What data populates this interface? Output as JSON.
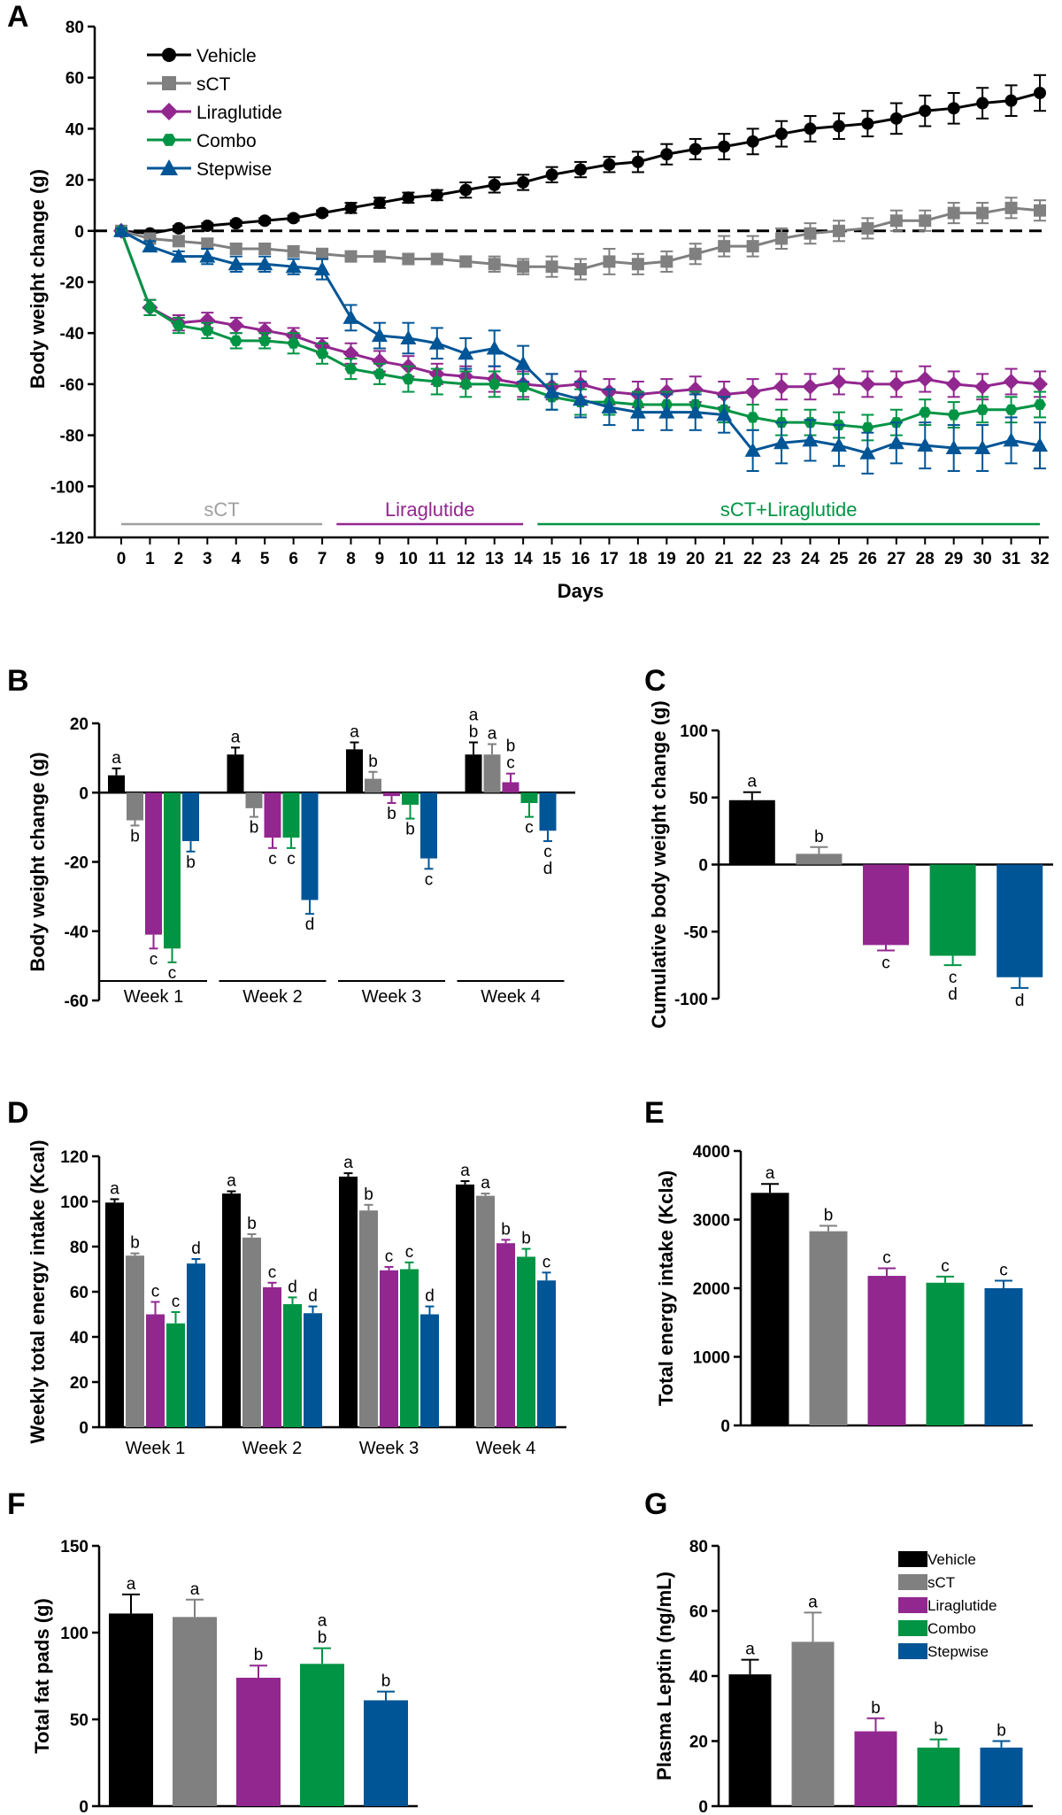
{
  "colors": {
    "Vehicle": "#000000",
    "sCT": "#808080",
    "Liraglutide": "#92278f",
    "Combo": "#009444",
    "Stepwise": "#005596"
  },
  "chart_data": [
    {
      "panel": "A",
      "type": "line",
      "ylabel": "Body weight change (g)",
      "xlabel": "Days",
      "xlim": [
        0,
        32
      ],
      "ylim": [
        -120,
        80
      ],
      "yticks": [
        80,
        60,
        40,
        20,
        0,
        -20,
        -40,
        -60,
        -80,
        -100,
        -120
      ],
      "reference_line": 0,
      "legend": "top-left",
      "phases": [
        {
          "label": "sCT",
          "from": 0,
          "to": 7,
          "color": "#a0a0a0"
        },
        {
          "label": "Liraglutide",
          "from": 7.5,
          "to": 14,
          "color": "#92278f"
        },
        {
          "label": "sCT+Liraglutide",
          "from": 14.5,
          "to": 32,
          "color": "#009444"
        }
      ],
      "x": [
        0,
        1,
        2,
        3,
        4,
        5,
        6,
        7,
        8,
        9,
        10,
        11,
        12,
        13,
        14,
        15,
        16,
        17,
        18,
        19,
        20,
        21,
        22,
        23,
        24,
        25,
        26,
        27,
        28,
        29,
        30,
        31,
        32
      ],
      "series": [
        {
          "name": "Vehicle",
          "marker": "circle",
          "values": [
            0,
            -1,
            1,
            2,
            3,
            4,
            5,
            7,
            9,
            11,
            13,
            14,
            16,
            18,
            19,
            22,
            24,
            26,
            27,
            30,
            32,
            33,
            35,
            38,
            40,
            41,
            42,
            44,
            47,
            48,
            50,
            51,
            54
          ],
          "err": [
            1,
            1,
            1,
            1,
            1,
            1,
            1,
            1,
            2,
            2,
            2,
            2,
            3,
            3,
            3,
            3,
            3,
            3,
            4,
            4,
            4,
            5,
            5,
            5,
            5,
            5,
            5,
            6,
            6,
            6,
            6,
            6,
            7
          ]
        },
        {
          "name": "sCT",
          "marker": "square",
          "values": [
            0,
            -3,
            -4,
            -5,
            -7,
            -7,
            -8,
            -9,
            -10,
            -10,
            -11,
            -11,
            -12,
            -13,
            -14,
            -14,
            -15,
            -12,
            -13,
            -12,
            -9,
            -6,
            -6,
            -3,
            -1,
            0,
            1,
            4,
            4,
            7,
            7,
            9,
            8
          ],
          "err": [
            1,
            1,
            2,
            2,
            2,
            2,
            2,
            2,
            2,
            2,
            2,
            2,
            2,
            3,
            3,
            4,
            4,
            5,
            4,
            4,
            4,
            4,
            4,
            4,
            4,
            4,
            4,
            4,
            4,
            4,
            4,
            4,
            4
          ]
        },
        {
          "name": "Liraglutide",
          "marker": "diamond",
          "values": [
            0,
            -30,
            -36,
            -35,
            -37,
            -39,
            -41,
            -45,
            -48,
            -51,
            -53,
            -56,
            -57,
            -58,
            -60,
            -61,
            -60,
            -63,
            -64,
            -63,
            -62,
            -64,
            -63,
            -61,
            -61,
            -59,
            -60,
            -60,
            -58,
            -60,
            -61,
            -59,
            -60
          ],
          "err": [
            1,
            3,
            3,
            3,
            3,
            3,
            3,
            3,
            4,
            4,
            4,
            4,
            4,
            5,
            5,
            5,
            5,
            5,
            5,
            5,
            5,
            5,
            5,
            5,
            5,
            5,
            5,
            5,
            5,
            5,
            5,
            5,
            5
          ]
        },
        {
          "name": "Combo",
          "marker": "hexagon",
          "values": [
            0,
            -30,
            -37,
            -39,
            -43,
            -43,
            -44,
            -48,
            -54,
            -56,
            -58,
            -59,
            -60,
            -60,
            -61,
            -65,
            -67,
            -67,
            -68,
            -68,
            -68,
            -70,
            -73,
            -75,
            -75,
            -76,
            -77,
            -75,
            -71,
            -72,
            -70,
            -70,
            -68
          ],
          "err": [
            1,
            3,
            3,
            3,
            3,
            3,
            4,
            4,
            4,
            4,
            5,
            5,
            5,
            5,
            5,
            5,
            5,
            5,
            5,
            5,
            5,
            5,
            5,
            5,
            5,
            5,
            5,
            5,
            5,
            5,
            5,
            5,
            5
          ]
        },
        {
          "name": "Stepwise",
          "marker": "triangle",
          "values": [
            0,
            -6,
            -10,
            -10,
            -13,
            -13,
            -14,
            -15,
            -34,
            -41,
            -42,
            -44,
            -48,
            -46,
            -52,
            -63,
            -66,
            -69,
            -71,
            -71,
            -71,
            -72,
            -86,
            -83,
            -82,
            -84,
            -87,
            -83,
            -84,
            -85,
            -85,
            -82,
            -84
          ],
          "err": [
            1,
            2,
            2,
            3,
            3,
            3,
            3,
            4,
            5,
            5,
            6,
            6,
            6,
            7,
            7,
            7,
            7,
            7,
            7,
            7,
            7,
            7,
            8,
            8,
            8,
            8,
            8,
            8,
            9,
            9,
            9,
            9,
            9
          ]
        }
      ]
    },
    {
      "panel": "B",
      "type": "bar",
      "ylabel": "Body weight change (g)",
      "ylim": [
        -60,
        20
      ],
      "yticks": [
        20,
        0,
        -20,
        -40,
        -60
      ],
      "categories": [
        "Week 1",
        "Week 2",
        "Week 3",
        "Week 4"
      ],
      "series": [
        {
          "name": "Vehicle",
          "values": [
            5,
            11,
            12.5,
            11
          ],
          "err": [
            2,
            2,
            2,
            3.5
          ],
          "letters": [
            "a",
            "a",
            "a",
            "a\nb"
          ]
        },
        {
          "name": "sCT",
          "values": [
            -8,
            -4.5,
            4,
            11
          ],
          "err": [
            1.5,
            2.5,
            2,
            3
          ],
          "letters": [
            "b",
            "b",
            "b",
            "a"
          ]
        },
        {
          "name": "Liraglutide",
          "values": [
            -41,
            -13,
            -1,
            3
          ],
          "err": [
            4,
            3,
            2,
            2.5
          ],
          "letters": [
            "c",
            "c",
            "b",
            "b\nc"
          ]
        },
        {
          "name": "Combo",
          "values": [
            -45,
            -13,
            -3.5,
            -3
          ],
          "err": [
            4,
            3,
            4,
            4
          ],
          "letters": [
            "c",
            "c",
            "b",
            "c"
          ]
        },
        {
          "name": "Stepwise",
          "values": [
            -14,
            -31,
            -19,
            -11
          ],
          "err": [
            3,
            4,
            3,
            3
          ],
          "letters": [
            "b",
            "d",
            "c",
            "c\nd"
          ]
        }
      ]
    },
    {
      "panel": "C",
      "type": "bar",
      "ylabel": "Cumulative body weight change (g)",
      "ylim": [
        -100,
        100
      ],
      "yticks": [
        100,
        50,
        0,
        -50,
        -100
      ],
      "categories": [
        "Vehicle",
        "sCT",
        "Liraglutide",
        "Combo",
        "Stepwise"
      ],
      "values": [
        48,
        8,
        -60,
        -68,
        -84
      ],
      "err": [
        6,
        5,
        4,
        7,
        8
      ],
      "letters": [
        "a",
        "b",
        "c",
        "c\nd",
        "d"
      ]
    },
    {
      "panel": "D",
      "type": "bar",
      "ylabel": "Weekly total energy intake (Kcal)",
      "ylim": [
        0,
        120
      ],
      "yticks": [
        0,
        20,
        40,
        60,
        80,
        100,
        120
      ],
      "categories": [
        "Week 1",
        "Week 2",
        "Week 3",
        "Week 4"
      ],
      "series": [
        {
          "name": "Vehicle",
          "values": [
            99.5,
            103.5,
            111,
            107.5
          ],
          "err": [
            1.5,
            1,
            1.5,
            1.5
          ],
          "letters": [
            "a",
            "a",
            "a",
            "a"
          ]
        },
        {
          "name": "sCT",
          "values": [
            76,
            84,
            96,
            102.5
          ],
          "err": [
            1,
            1.5,
            2.5,
            1
          ],
          "letters": [
            "b",
            "b",
            "b",
            "a"
          ]
        },
        {
          "name": "Liraglutide",
          "values": [
            50,
            62,
            69.5,
            81.5
          ],
          "err": [
            5.5,
            2,
            1.5,
            1.5
          ],
          "letters": [
            "c",
            "c",
            "c",
            "b"
          ]
        },
        {
          "name": "Combo",
          "values": [
            46,
            54.5,
            70,
            75.5
          ],
          "err": [
            5,
            3,
            3,
            3.5
          ],
          "letters": [
            "c",
            "d",
            "c",
            "b"
          ]
        },
        {
          "name": "Stepwise",
          "values": [
            72.5,
            50.5,
            50,
            65
          ],
          "err": [
            2,
            3,
            3.5,
            3.5
          ],
          "letters": [
            "d",
            "d",
            "d",
            "c"
          ]
        }
      ]
    },
    {
      "panel": "E",
      "type": "bar",
      "ylabel": "Total energy intake (Kcla)",
      "ylim": [
        0,
        4000
      ],
      "yticks": [
        0,
        1000,
        2000,
        3000,
        4000
      ],
      "categories": [
        "Vehicle",
        "sCT",
        "Liraglutide",
        "Combo",
        "Stepwise"
      ],
      "values": [
        3390,
        2830,
        2180,
        2080,
        2000
      ],
      "err": [
        130,
        80,
        110,
        90,
        110
      ],
      "letters": [
        "a",
        "b",
        "c",
        "c",
        "c"
      ]
    },
    {
      "panel": "F",
      "type": "bar",
      "ylabel": "Total fat pads (g)",
      "ylim": [
        0,
        150
      ],
      "yticks": [
        0,
        50,
        100,
        150
      ],
      "categories": [
        "Vehicle",
        "sCT",
        "Liraglutide",
        "Combo",
        "Stepwise"
      ],
      "values": [
        111,
        109,
        74,
        82,
        61
      ],
      "err": [
        11,
        10,
        7,
        9,
        5
      ],
      "letters": [
        "a",
        "a",
        "b",
        "a\nb",
        "b"
      ]
    },
    {
      "panel": "G",
      "type": "bar",
      "ylabel": "Plasma Leptin (ng/mL)",
      "ylim": [
        0,
        80
      ],
      "yticks": [
        0,
        20,
        40,
        60,
        80
      ],
      "legend": "top-right",
      "categories": [
        "Vehicle",
        "sCT",
        "Liraglutide",
        "Combo",
        "Stepwise"
      ],
      "values": [
        40.5,
        50.5,
        23,
        18,
        18
      ],
      "err": [
        4.5,
        9,
        4,
        2.5,
        2
      ],
      "letters": [
        "a",
        "a",
        "b",
        "b",
        "b"
      ]
    }
  ]
}
